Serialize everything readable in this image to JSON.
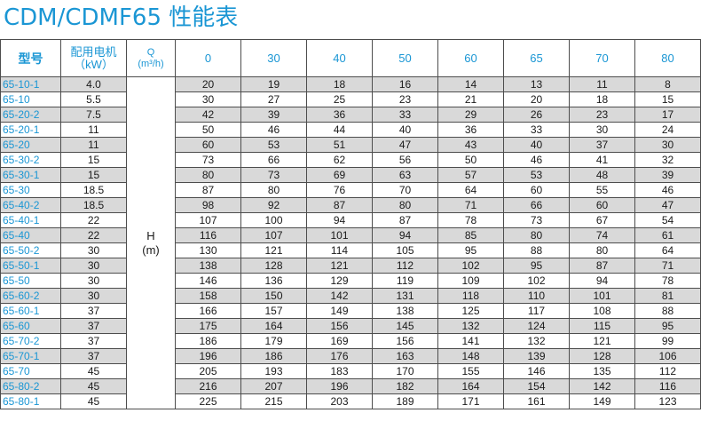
{
  "title": "CDM/CDMF65 性能表",
  "header": {
    "model": "型号",
    "power_line1": "配用电机",
    "power_line2": "（kW）",
    "q_line1": "Q",
    "q_line2": "(m³/h)",
    "flows": [
      "0",
      "30",
      "40",
      "50",
      "60",
      "65",
      "70",
      "80"
    ]
  },
  "h_label_line1": "H",
  "h_label_line2": "(m)",
  "rows": [
    {
      "model": "65-10-1",
      "power": "4.0",
      "h": [
        "20",
        "19",
        "18",
        "16",
        "14",
        "13",
        "11",
        "8"
      ]
    },
    {
      "model": "65-10",
      "power": "5.5",
      "h": [
        "30",
        "27",
        "25",
        "23",
        "21",
        "20",
        "18",
        "15"
      ]
    },
    {
      "model": "65-20-2",
      "power": "7.5",
      "h": [
        "42",
        "39",
        "36",
        "33",
        "29",
        "26",
        "23",
        "17"
      ]
    },
    {
      "model": "65-20-1",
      "power": "11",
      "h": [
        "50",
        "46",
        "44",
        "40",
        "36",
        "33",
        "30",
        "24"
      ]
    },
    {
      "model": "65-20",
      "power": "11",
      "h": [
        "60",
        "53",
        "51",
        "47",
        "43",
        "40",
        "37",
        "30"
      ]
    },
    {
      "model": "65-30-2",
      "power": "15",
      "h": [
        "73",
        "66",
        "62",
        "56",
        "50",
        "46",
        "41",
        "32"
      ]
    },
    {
      "model": "65-30-1",
      "power": "15",
      "h": [
        "80",
        "73",
        "69",
        "63",
        "57",
        "53",
        "48",
        "39"
      ]
    },
    {
      "model": "65-30",
      "power": "18.5",
      "h": [
        "87",
        "80",
        "76",
        "70",
        "64",
        "60",
        "55",
        "46"
      ]
    },
    {
      "model": "65-40-2",
      "power": "18.5",
      "h": [
        "98",
        "92",
        "87",
        "80",
        "71",
        "66",
        "60",
        "47"
      ]
    },
    {
      "model": "65-40-1",
      "power": "22",
      "h": [
        "107",
        "100",
        "94",
        "87",
        "78",
        "73",
        "67",
        "54"
      ]
    },
    {
      "model": "65-40",
      "power": "22",
      "h": [
        "116",
        "107",
        "101",
        "94",
        "85",
        "80",
        "74",
        "61"
      ]
    },
    {
      "model": "65-50-2",
      "power": "30",
      "h": [
        "130",
        "121",
        "114",
        "105",
        "95",
        "88",
        "80",
        "64"
      ]
    },
    {
      "model": "65-50-1",
      "power": "30",
      "h": [
        "138",
        "128",
        "121",
        "112",
        "102",
        "95",
        "87",
        "71"
      ]
    },
    {
      "model": "65-50",
      "power": "30",
      "h": [
        "146",
        "136",
        "129",
        "119",
        "109",
        "102",
        "94",
        "78"
      ]
    },
    {
      "model": "65-60-2",
      "power": "30",
      "h": [
        "158",
        "150",
        "142",
        "131",
        "118",
        "110",
        "101",
        "81"
      ]
    },
    {
      "model": "65-60-1",
      "power": "37",
      "h": [
        "166",
        "157",
        "149",
        "138",
        "125",
        "117",
        "108",
        "88"
      ]
    },
    {
      "model": "65-60",
      "power": "37",
      "h": [
        "175",
        "164",
        "156",
        "145",
        "132",
        "124",
        "115",
        "95"
      ]
    },
    {
      "model": "65-70-2",
      "power": "37",
      "h": [
        "186",
        "179",
        "169",
        "156",
        "141",
        "132",
        "121",
        "99"
      ]
    },
    {
      "model": "65-70-1",
      "power": "37",
      "h": [
        "196",
        "186",
        "176",
        "163",
        "148",
        "139",
        "128",
        "106"
      ]
    },
    {
      "model": "65-70",
      "power": "45",
      "h": [
        "205",
        "193",
        "183",
        "170",
        "155",
        "146",
        "135",
        "112"
      ]
    },
    {
      "model": "65-80-2",
      "power": "45",
      "h": [
        "216",
        "207",
        "196",
        "182",
        "164",
        "154",
        "142",
        "116"
      ]
    },
    {
      "model": "65-80-1",
      "power": "45",
      "h": [
        "225",
        "215",
        "203",
        "189",
        "171",
        "161",
        "149",
        "123"
      ]
    }
  ]
}
